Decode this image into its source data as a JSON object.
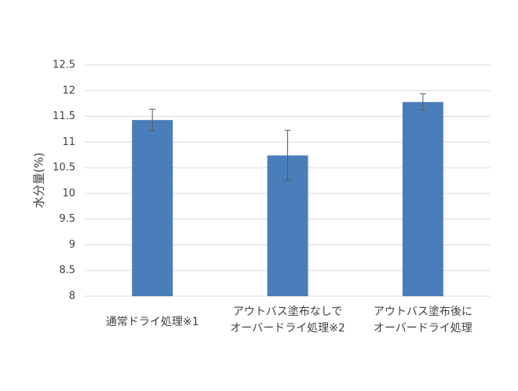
{
  "chart_data": {
    "type": "bar",
    "y_label": "水分量(%)",
    "categories": [
      [
        "通常ドライ処理※1"
      ],
      [
        "アウトバス塗布なしで",
        "オーバードライ処理※2"
      ],
      [
        "アウトバス塗布後に",
        "オーバードライ処理"
      ]
    ],
    "values": [
      11.43,
      10.74,
      11.78
    ],
    "errors": [
      0.21,
      0.49,
      0.16
    ],
    "color": "#4a7ebb",
    "ylim": [
      8,
      12.5
    ],
    "yticks": [
      8,
      8.5,
      9,
      9.5,
      10,
      10.5,
      11,
      11.5,
      12,
      12.5
    ],
    "grid": true
  }
}
